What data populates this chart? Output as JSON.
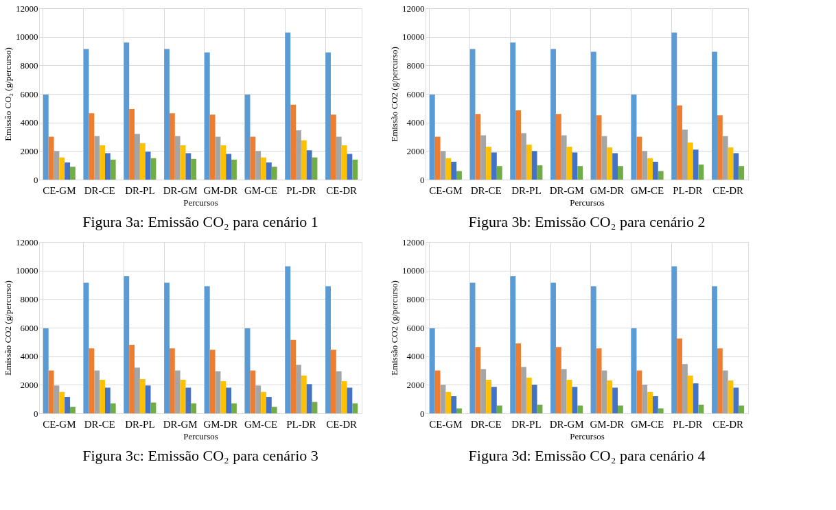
{
  "chart_data": [
    {
      "type": "bar",
      "title": "Figura 3a: Emissão CO₂ para cenário 1",
      "xlabel": "Percursos",
      "ylabel": "Emissão CO₂ (g/percurso)",
      "categories": [
        "CE-GM",
        "DR-CE",
        "DR-PL",
        "DR-GM",
        "GM-DR",
        "GM-CE",
        "PL-DR",
        "CE-DR"
      ],
      "ylim": [
        0,
        12000
      ],
      "yticks": [
        0,
        2000,
        4000,
        6000,
        8000,
        10000,
        12000
      ],
      "grid": true,
      "legend": false,
      "series": [
        {
          "color": "#5b9bd5",
          "values": [
            5950,
            9150,
            9600,
            9150,
            8900,
            5950,
            10300,
            8900
          ]
        },
        {
          "color": "#ed7d31",
          "values": [
            3000,
            4650,
            4950,
            4650,
            4550,
            3000,
            5250,
            4550
          ]
        },
        {
          "color": "#a5a5a5",
          "values": [
            2000,
            3050,
            3200,
            3050,
            3000,
            2000,
            3450,
            3000
          ]
        },
        {
          "color": "#ffc000",
          "values": [
            1550,
            2400,
            2550,
            2400,
            2400,
            1550,
            2750,
            2400
          ]
        },
        {
          "color": "#4472c4",
          "values": [
            1200,
            1850,
            1950,
            1850,
            1800,
            1200,
            2050,
            1800
          ]
        },
        {
          "color": "#70ad47",
          "values": [
            900,
            1400,
            1500,
            1450,
            1400,
            900,
            1550,
            1400
          ]
        }
      ]
    },
    {
      "type": "bar",
      "title": "Figura 3b: Emissão CO₂ para cenário 2",
      "xlabel": "Percursos",
      "ylabel": "Emissão CO2  (g/percurso)",
      "categories": [
        "CE-GM",
        "DR-CE",
        "DR-PL",
        "DR-GM",
        "GM-DR",
        "GM-CE",
        "PL-DR",
        "CE-DR"
      ],
      "ylim": [
        0,
        12000
      ],
      "yticks": [
        0,
        2000,
        4000,
        6000,
        8000,
        10000,
        12000
      ],
      "grid": true,
      "legend": false,
      "series": [
        {
          "color": "#5b9bd5",
          "values": [
            5950,
            9150,
            9600,
            9150,
            8950,
            5950,
            10300,
            8950
          ]
        },
        {
          "color": "#ed7d31",
          "values": [
            3000,
            4600,
            4850,
            4600,
            4500,
            3000,
            5200,
            4500
          ]
        },
        {
          "color": "#a5a5a5",
          "values": [
            2000,
            3100,
            3250,
            3100,
            3050,
            2000,
            3500,
            3050
          ]
        },
        {
          "color": "#ffc000",
          "values": [
            1500,
            2300,
            2450,
            2300,
            2250,
            1500,
            2600,
            2250
          ]
        },
        {
          "color": "#4472c4",
          "values": [
            1250,
            1900,
            2000,
            1900,
            1850,
            1250,
            2100,
            1850
          ]
        },
        {
          "color": "#70ad47",
          "values": [
            600,
            950,
            1000,
            950,
            950,
            600,
            1050,
            950
          ]
        }
      ]
    },
    {
      "type": "bar",
      "title": "Figura 3c: Emissão CO₂ para cenário 3",
      "xlabel": "Percursos",
      "ylabel": "Emissão CO2 (g/percurso)",
      "categories": [
        "CE-GM",
        "DR-CE",
        "DR-PL",
        "DR-GM",
        "GM-DR",
        "GM-CE",
        "PL-DR",
        "CE-DR"
      ],
      "ylim": [
        0,
        12000
      ],
      "yticks": [
        0,
        2000,
        4000,
        6000,
        8000,
        10000,
        12000
      ],
      "grid": true,
      "legend": false,
      "series": [
        {
          "color": "#5b9bd5",
          "values": [
            5950,
            9150,
            9600,
            9150,
            8900,
            5950,
            10300,
            8900
          ]
        },
        {
          "color": "#ed7d31",
          "values": [
            3000,
            4550,
            4800,
            4550,
            4450,
            3000,
            5150,
            4450
          ]
        },
        {
          "color": "#a5a5a5",
          "values": [
            1950,
            3000,
            3200,
            3000,
            2950,
            1950,
            3400,
            2950
          ]
        },
        {
          "color": "#ffc000",
          "values": [
            1500,
            2350,
            2400,
            2350,
            2250,
            1500,
            2650,
            2250
          ]
        },
        {
          "color": "#4472c4",
          "values": [
            1150,
            1800,
            1950,
            1800,
            1800,
            1150,
            2050,
            1800
          ]
        },
        {
          "color": "#70ad47",
          "values": [
            450,
            700,
            750,
            700,
            700,
            450,
            800,
            700
          ]
        }
      ]
    },
    {
      "type": "bar",
      "title": "Figura 3d: Emissão CO₂ para cenário 4",
      "xlabel": "Percursos",
      "ylabel": "Emissão CO2 (g/percurso)",
      "categories": [
        "CE-GM",
        "DR-CE",
        "DR-PL",
        "DR-GM",
        "GM-DR",
        "GM-CE",
        "PL-DR",
        "CE-DR"
      ],
      "ylim": [
        0,
        12000
      ],
      "yticks": [
        0,
        2000,
        4000,
        6000,
        8000,
        10000,
        12000
      ],
      "grid": true,
      "legend": false,
      "series": [
        {
          "color": "#5b9bd5",
          "values": [
            5950,
            9150,
            9600,
            9150,
            8900,
            5950,
            10300,
            8900
          ]
        },
        {
          "color": "#ed7d31",
          "values": [
            3000,
            4650,
            4900,
            4650,
            4550,
            3000,
            5250,
            4550
          ]
        },
        {
          "color": "#a5a5a5",
          "values": [
            2000,
            3100,
            3250,
            3100,
            3000,
            2000,
            3450,
            3000
          ]
        },
        {
          "color": "#ffc000",
          "values": [
            1500,
            2350,
            2500,
            2350,
            2300,
            1500,
            2650,
            2300
          ]
        },
        {
          "color": "#4472c4",
          "values": [
            1200,
            1850,
            2000,
            1850,
            1800,
            1200,
            2100,
            1800
          ]
        },
        {
          "color": "#70ad47",
          "values": [
            350,
            550,
            600,
            550,
            550,
            350,
            600,
            550
          ]
        }
      ]
    }
  ]
}
